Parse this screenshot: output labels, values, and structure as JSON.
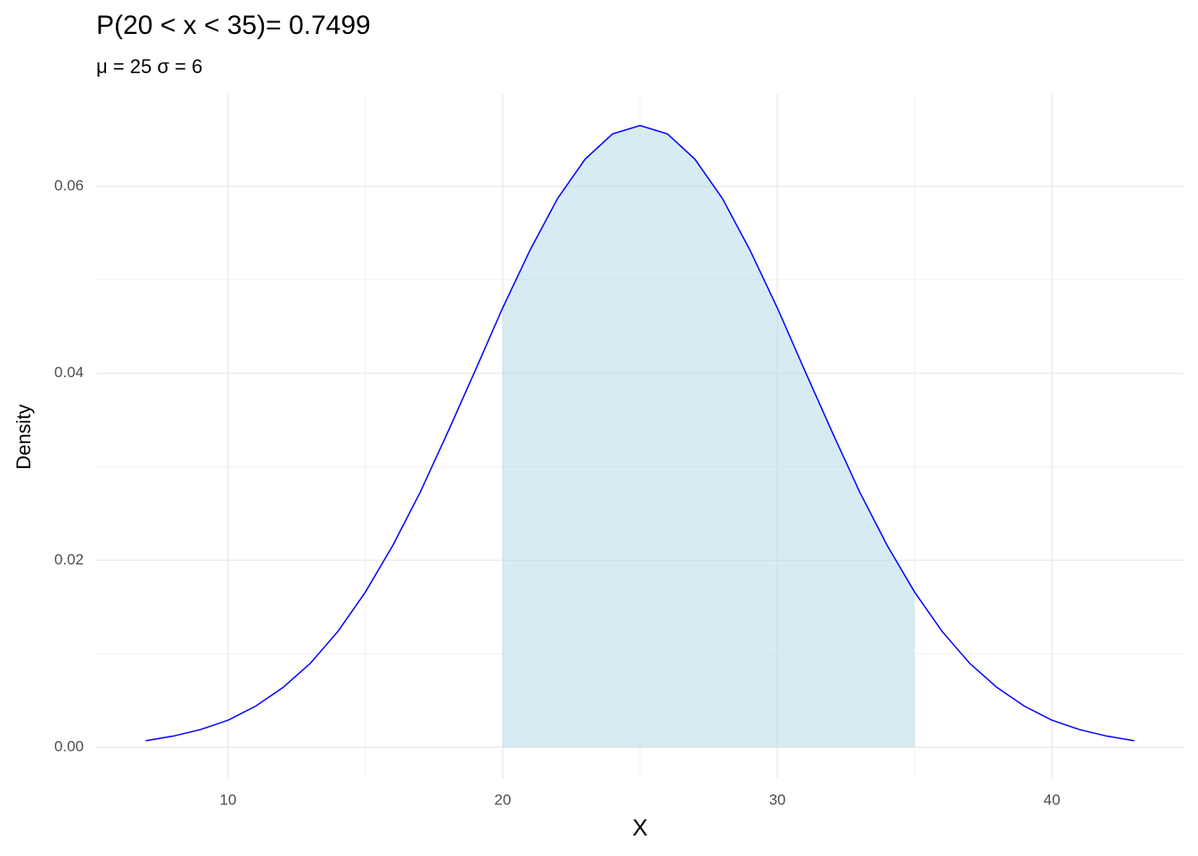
{
  "chart_data": {
    "type": "line",
    "title": "P(20 < x < 35)=  0.7499",
    "subtitle": "μ = 25 σ = 6",
    "x_label": "X",
    "y_label": "Density",
    "xlim": [
      5.2,
      44.8
    ],
    "ylim": [
      -0.003325,
      0.069815
    ],
    "xticks": [
      10,
      20,
      30,
      40
    ],
    "minor_xticks": [
      15,
      25,
      35
    ],
    "yticks": [
      {
        "value": 0,
        "label": "0.00"
      },
      {
        "value": 0.02,
        "label": "0.02"
      },
      {
        "value": 0.04,
        "label": "0.04"
      },
      {
        "value": 0.06,
        "label": "0.06"
      }
    ],
    "minor_yticks": [
      0.01,
      0.03,
      0.05
    ],
    "grid": true,
    "series": [
      {
        "kind": "area",
        "color": "#add8e6",
        "opacity": 0.5,
        "x": [
          20,
          21,
          22,
          23,
          24,
          25,
          26,
          27,
          28,
          29,
          30,
          31,
          32,
          33,
          34,
          35
        ],
        "values": [
          0.047,
          0.0532,
          0.0587,
          0.0629,
          0.0656,
          0.0665,
          0.0656,
          0.0629,
          0.0587,
          0.0532,
          0.047,
          0.0403,
          0.0337,
          0.0273,
          0.0216,
          0.0166
        ]
      },
      {
        "kind": "line",
        "color": "#0000ff",
        "x": [
          7,
          8,
          9,
          10,
          11,
          12,
          13,
          14,
          15,
          16,
          17,
          18,
          19,
          20,
          21,
          22,
          23,
          24,
          25,
          26,
          27,
          28,
          29,
          30,
          31,
          32,
          33,
          34,
          35,
          36,
          37,
          38,
          39,
          40,
          41,
          42,
          43
        ],
        "values": [
          0.0007,
          0.0012,
          0.0019,
          0.0029,
          0.0044,
          0.0064,
          0.009,
          0.0124,
          0.0166,
          0.0216,
          0.0273,
          0.0337,
          0.0403,
          0.047,
          0.0532,
          0.0587,
          0.0629,
          0.0656,
          0.0665,
          0.0656,
          0.0629,
          0.0587,
          0.0532,
          0.047,
          0.0403,
          0.0337,
          0.0273,
          0.0216,
          0.0166,
          0.0124,
          0.009,
          0.0064,
          0.0044,
          0.0029,
          0.0019,
          0.0012,
          0.0007
        ]
      }
    ]
  }
}
